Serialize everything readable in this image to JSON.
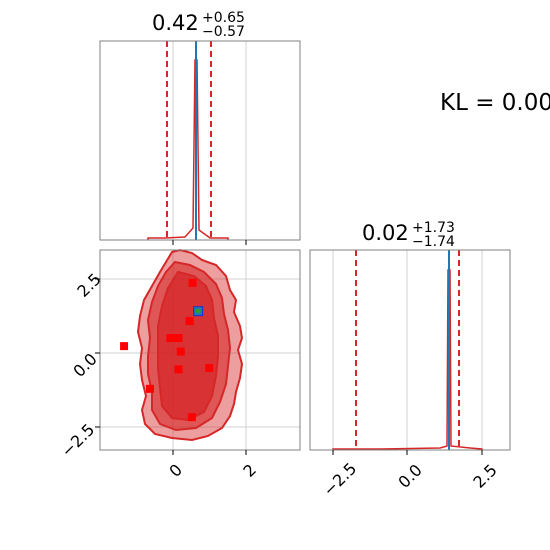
{
  "colors": {
    "posterior": "#d62728",
    "truth": "#1f77b4",
    "marker_square": "#ff0000",
    "marker_center": "#2ca02c",
    "frame": "#808080",
    "grid": "#d0d0d0"
  },
  "kl_text": "KL = 0.00",
  "chart_data": [
    {
      "type": "line",
      "panel": "marginal-param-1",
      "title": {
        "value": "0.42",
        "upper": "+0.65",
        "lower": "−0.57"
      },
      "xlim": [
        -2.0,
        3.4
      ],
      "grid": true,
      "quantile_lines": [
        -0.15,
        0.42,
        1.07
      ],
      "truth_value": 0.65,
      "histogram_peak_x": 0.65
    },
    {
      "type": "line",
      "panel": "marginal-param-2",
      "title": {
        "value": "0.02",
        "upper": "+1.73",
        "lower": "−1.74"
      },
      "xlim": [
        -3.2,
        3.5
      ],
      "grid": true,
      "ticks": [
        -2.5,
        0.0,
        2.5
      ],
      "tick_labels": [
        "−2.5",
        "0.0",
        "2.5"
      ],
      "quantile_lines": [
        -1.72,
        1.75
      ],
      "truth_value": 1.45,
      "histogram_peak_x": 1.45
    },
    {
      "type": "scatter",
      "panel": "joint-param-1-param-2",
      "xlim": [
        -2.0,
        3.4
      ],
      "ylim": [
        -3.2,
        3.5
      ],
      "grid": true,
      "x_ticks": [
        0,
        2
      ],
      "x_tick_labels": [
        "0",
        "2"
      ],
      "y_ticks": [
        -2.5,
        0.0,
        2.5
      ],
      "y_tick_labels": [
        "−2.5",
        "0.0",
        "2.5"
      ],
      "contour_levels": 3,
      "points": [
        {
          "x": -1.35,
          "y": 0.28
        },
        {
          "x": -0.65,
          "y": -1.15
        },
        {
          "x": -0.1,
          "y": 0.55
        },
        {
          "x": 0.12,
          "y": 0.55
        },
        {
          "x": 0.18,
          "y": 0.1
        },
        {
          "x": 0.12,
          "y": -0.5
        },
        {
          "x": 0.42,
          "y": 1.12
        },
        {
          "x": 0.5,
          "y": 2.4
        },
        {
          "x": 0.48,
          "y": -2.1
        },
        {
          "x": 0.95,
          "y": -0.45
        }
      ],
      "truth_point": {
        "x": 0.65,
        "y": 1.45
      }
    }
  ]
}
